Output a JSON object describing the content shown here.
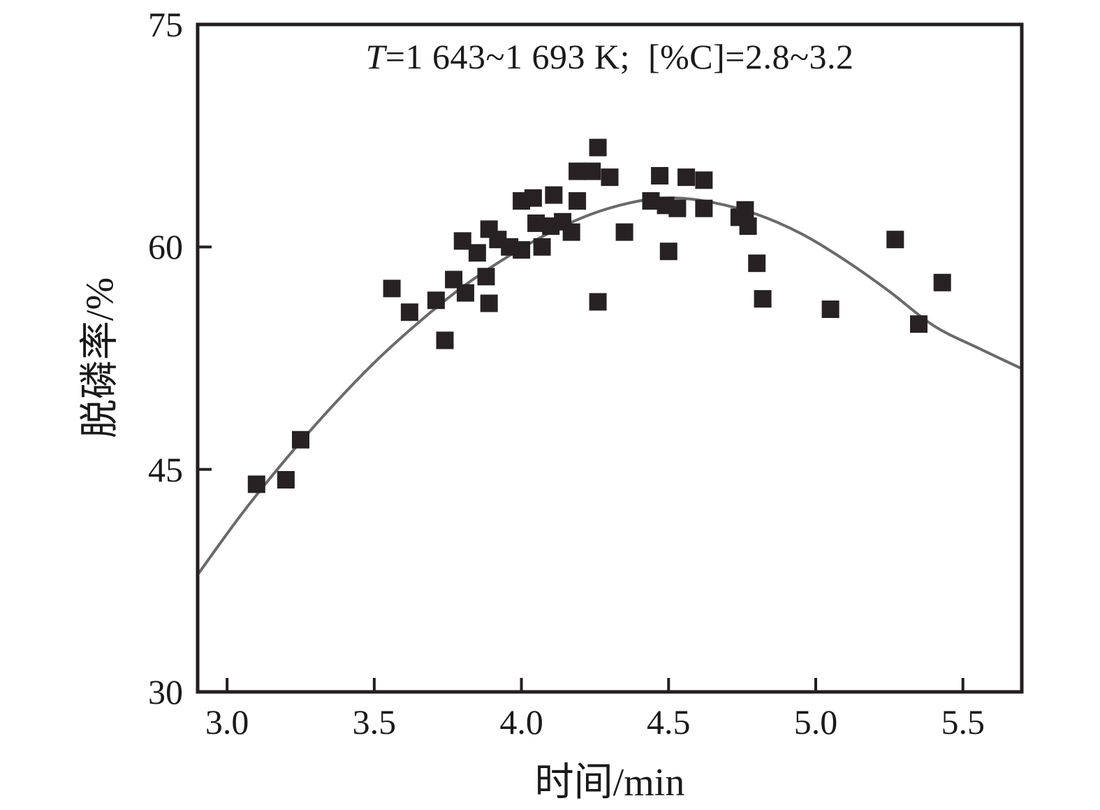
{
  "chart_data": {
    "type": "scatter",
    "annotation_italic_var": "T",
    "annotation_rest": "=1 643~1 693 K;  [%C]=2.8~3.2",
    "annotation_full": "T=1 643~1 693 K; [%C]=2.8~3.2",
    "xlabel": "时间/min",
    "ylabel": "脱磷率/%",
    "xlim": [
      2.9,
      5.7
    ],
    "ylim": [
      30,
      75
    ],
    "x_ticks": [
      3.0,
      3.5,
      4.0,
      4.5,
      5.0,
      5.5
    ],
    "x_tick_labels": [
      "3.0",
      "3.5",
      "4.0",
      "4.5",
      "5.0",
      "5.5"
    ],
    "y_ticks": [
      30,
      45,
      60,
      75
    ],
    "y_tick_labels": [
      "30",
      "45",
      "60",
      "75"
    ],
    "grid": false,
    "legend_position": "none",
    "colors": {
      "marker": "#262223",
      "curve": "#6a6a6a",
      "axis": "#231f20",
      "text": "#1a1a1a"
    },
    "series": [
      {
        "name": "measured-dephosphorization-points",
        "type": "scatter",
        "marker": "square",
        "points": [
          [
            3.1,
            44.0
          ],
          [
            3.2,
            44.3
          ],
          [
            3.25,
            47.0
          ],
          [
            3.56,
            57.2
          ],
          [
            3.62,
            55.6
          ],
          [
            3.71,
            56.4
          ],
          [
            3.74,
            53.7
          ],
          [
            3.77,
            57.8
          ],
          [
            3.8,
            60.4
          ],
          [
            3.81,
            56.9
          ],
          [
            3.85,
            59.6
          ],
          [
            3.88,
            58.0
          ],
          [
            3.89,
            56.2
          ],
          [
            3.89,
            61.2
          ],
          [
            3.92,
            60.5
          ],
          [
            3.96,
            60.0
          ],
          [
            4.0,
            59.8
          ],
          [
            4.0,
            63.1
          ],
          [
            4.04,
            63.3
          ],
          [
            4.05,
            61.6
          ],
          [
            4.07,
            60.0
          ],
          [
            4.1,
            61.4
          ],
          [
            4.11,
            63.5
          ],
          [
            4.14,
            61.7
          ],
          [
            4.17,
            61.0
          ],
          [
            4.19,
            63.1
          ],
          [
            4.19,
            65.1
          ],
          [
            4.24,
            65.1
          ],
          [
            4.26,
            56.3
          ],
          [
            4.26,
            66.7
          ],
          [
            4.3,
            64.7
          ],
          [
            4.35,
            61.0
          ],
          [
            4.44,
            63.1
          ],
          [
            4.47,
            64.8
          ],
          [
            4.49,
            62.8
          ],
          [
            4.5,
            59.7
          ],
          [
            4.53,
            62.6
          ],
          [
            4.56,
            64.7
          ],
          [
            4.62,
            62.6
          ],
          [
            4.62,
            64.5
          ],
          [
            4.74,
            62.0
          ],
          [
            4.76,
            62.5
          ],
          [
            4.77,
            61.4
          ],
          [
            4.8,
            58.9
          ],
          [
            4.82,
            56.5
          ],
          [
            5.05,
            55.8
          ],
          [
            5.27,
            60.5
          ],
          [
            5.35,
            54.8
          ],
          [
            5.43,
            57.6
          ]
        ]
      },
      {
        "name": "fitted-curve",
        "type": "line",
        "points": [
          [
            2.9,
            37.9
          ],
          [
            3.05,
            42.0
          ],
          [
            3.2,
            45.7
          ],
          [
            3.35,
            49.1
          ],
          [
            3.5,
            52.2
          ],
          [
            3.65,
            54.9
          ],
          [
            3.8,
            57.3
          ],
          [
            3.95,
            59.3
          ],
          [
            4.1,
            61.0
          ],
          [
            4.25,
            62.3
          ],
          [
            4.4,
            63.1
          ],
          [
            4.52,
            63.3
          ],
          [
            4.65,
            63.0
          ],
          [
            4.8,
            62.2
          ],
          [
            4.95,
            60.9
          ],
          [
            5.1,
            59.1
          ],
          [
            5.25,
            57.0
          ],
          [
            5.4,
            54.7
          ],
          [
            5.55,
            53.2
          ],
          [
            5.7,
            51.8
          ]
        ]
      }
    ]
  }
}
